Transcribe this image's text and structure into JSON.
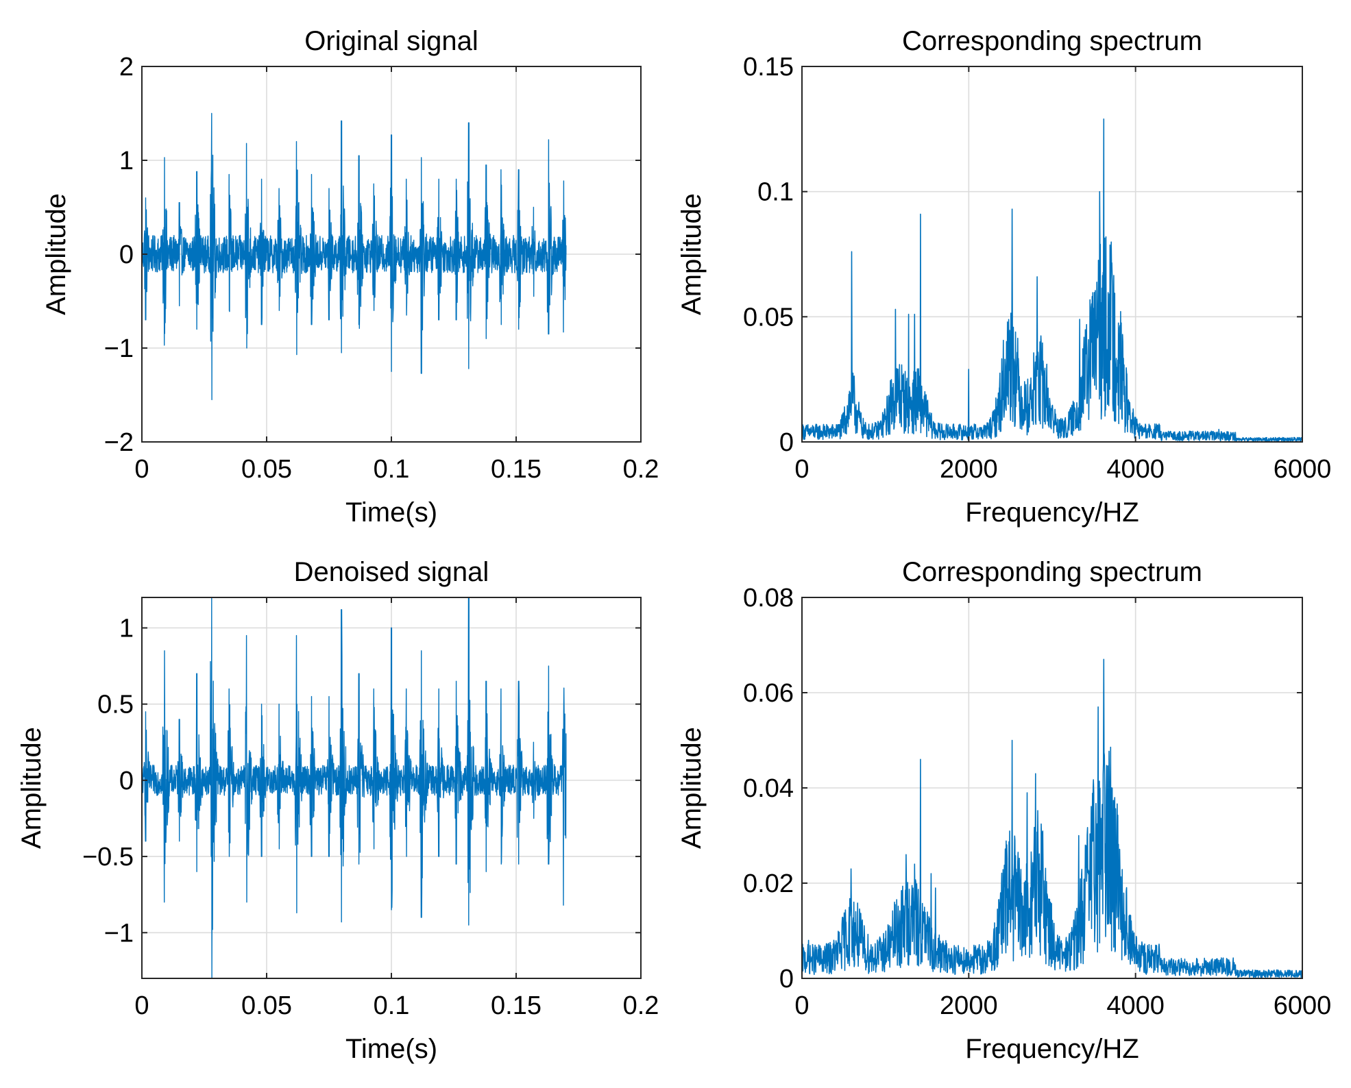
{
  "chart_data": [
    {
      "type": "line",
      "title": "Original signal",
      "xlabel": "Time(s)",
      "ylabel": "Amplitude",
      "xlim": [
        0,
        0.2
      ],
      "ylim": [
        -2,
        2
      ],
      "xticks": [
        0,
        0.05,
        0.1,
        0.15,
        0.2
      ],
      "yticks": [
        -2,
        -1,
        0,
        1,
        2
      ],
      "xtick_labels": [
        "0",
        "0.05",
        "0.1",
        "0.15",
        "0.2"
      ],
      "ytick_labels": [
        "−2",
        "−1",
        "0",
        "1",
        "2"
      ],
      "grid": true,
      "color": "#0072BD",
      "series": [
        {
          "x_range": [
            0,
            0.17
          ],
          "baseline": 0.2,
          "peaks": [
            {
              "x": 0.0015,
              "ymax": 0.6,
              "ymin": -0.7
            },
            {
              "x": 0.009,
              "ymax": 1.03,
              "ymin": -0.97
            },
            {
              "x": 0.015,
              "ymax": 0.55,
              "ymin": -0.55
            },
            {
              "x": 0.022,
              "ymax": 0.88,
              "ymin": -0.8
            },
            {
              "x": 0.028,
              "ymax": 1.5,
              "ymin": -1.55
            },
            {
              "x": 0.035,
              "ymax": 0.85,
              "ymin": -0.6
            },
            {
              "x": 0.042,
              "ymax": 1.18,
              "ymin": -1.0
            },
            {
              "x": 0.048,
              "ymax": 0.8,
              "ymin": -0.75
            },
            {
              "x": 0.055,
              "ymax": 0.7,
              "ymin": -0.6
            },
            {
              "x": 0.062,
              "ymax": 1.2,
              "ymin": -1.07
            },
            {
              "x": 0.068,
              "ymax": 0.85,
              "ymin": -0.75
            },
            {
              "x": 0.075,
              "ymax": 0.7,
              "ymin": -0.7
            },
            {
              "x": 0.08,
              "ymax": 1.42,
              "ymin": -1.05
            },
            {
              "x": 0.087,
              "ymax": 1.05,
              "ymin": -0.75
            },
            {
              "x": 0.093,
              "ymax": 0.75,
              "ymin": -0.6
            },
            {
              "x": 0.1,
              "ymax": 1.27,
              "ymin": -1.25
            },
            {
              "x": 0.106,
              "ymax": 0.8,
              "ymin": -0.65
            },
            {
              "x": 0.112,
              "ymax": 1.03,
              "ymin": -1.27
            },
            {
              "x": 0.119,
              "ymax": 0.8,
              "ymin": -0.7
            },
            {
              "x": 0.126,
              "ymax": 0.8,
              "ymin": -0.7
            },
            {
              "x": 0.131,
              "ymax": 1.4,
              "ymin": -1.22
            },
            {
              "x": 0.138,
              "ymax": 0.95,
              "ymin": -0.9
            },
            {
              "x": 0.144,
              "ymax": 0.9,
              "ymin": -0.75
            },
            {
              "x": 0.151,
              "ymax": 0.9,
              "ymin": -0.8
            },
            {
              "x": 0.157,
              "ymax": 0.5,
              "ymin": -0.45
            },
            {
              "x": 0.163,
              "ymax": 1.22,
              "ymin": -0.85
            },
            {
              "x": 0.169,
              "ymax": 0.78,
              "ymin": -0.83
            }
          ]
        }
      ]
    },
    {
      "type": "line",
      "title": "Corresponding spectrum",
      "xlabel": "Frequency/HZ",
      "ylabel": "Amplitude",
      "xlim": [
        0,
        6000
      ],
      "ylim": [
        0,
        0.15
      ],
      "xticks": [
        0,
        2000,
        4000,
        6000
      ],
      "yticks": [
        0,
        0.05,
        0.1,
        0.15
      ],
      "xtick_labels": [
        "0",
        "2000",
        "4000",
        "6000"
      ],
      "ytick_labels": [
        "0",
        "0.05",
        "0.1",
        "0.15"
      ],
      "grid": true,
      "color": "#0072BD",
      "series": [
        {
          "x_range": [
            0,
            6000
          ],
          "floor": 0.004,
          "bands": [
            {
              "x": 600,
              "height": 0.012,
              "width": 90
            },
            {
              "x": 1150,
              "height": 0.015,
              "width": 140
            },
            {
              "x": 1400,
              "height": 0.012,
              "width": 120
            },
            {
              "x": 2500,
              "height": 0.028,
              "width": 140
            },
            {
              "x": 2850,
              "height": 0.02,
              "width": 140
            },
            {
              "x": 3550,
              "height": 0.035,
              "width": 220
            },
            {
              "x": 3750,
              "height": 0.022,
              "width": 150
            }
          ],
          "peaks": [
            {
              "x": 595,
              "y": 0.076
            },
            {
              "x": 1120,
              "y": 0.053
            },
            {
              "x": 1280,
              "y": 0.051
            },
            {
              "x": 1350,
              "y": 0.051
            },
            {
              "x": 1420,
              "y": 0.091
            },
            {
              "x": 2000,
              "y": 0.029
            },
            {
              "x": 2520,
              "y": 0.093
            },
            {
              "x": 2820,
              "y": 0.066
            },
            {
              "x": 3330,
              "y": 0.049
            },
            {
              "x": 3570,
              "y": 0.1
            },
            {
              "x": 3620,
              "y": 0.129
            },
            {
              "x": 3720,
              "y": 0.066
            },
            {
              "x": 5000,
              "y": 0.005
            }
          ]
        }
      ]
    },
    {
      "type": "line",
      "title": "Denoised signal",
      "xlabel": "Time(s)",
      "ylabel": "Amplitude",
      "xlim": [
        0,
        0.2
      ],
      "ylim": [
        -1.3,
        1.2
      ],
      "xticks": [
        0,
        0.05,
        0.1,
        0.15,
        0.2
      ],
      "yticks": [
        -1,
        -0.5,
        0,
        0.5,
        1
      ],
      "xtick_labels": [
        "0",
        "0.05",
        "0.1",
        "0.15",
        "0.2"
      ],
      "ytick_labels": [
        "−1",
        "−0.5",
        "0",
        "0.5",
        "1"
      ],
      "grid": true,
      "color": "#0072BD",
      "series": [
        {
          "x_range": [
            0,
            0.17
          ],
          "baseline": 0.1,
          "peaks": [
            {
              "x": 0.0015,
              "ymax": 0.45,
              "ymin": -0.4
            },
            {
              "x": 0.009,
              "ymax": 0.85,
              "ymin": -0.8
            },
            {
              "x": 0.015,
              "ymax": 0.4,
              "ymin": -0.4
            },
            {
              "x": 0.022,
              "ymax": 0.7,
              "ymin": -0.6
            },
            {
              "x": 0.028,
              "ymax": 1.2,
              "ymin": -1.3
            },
            {
              "x": 0.035,
              "ymax": 0.6,
              "ymin": -0.5
            },
            {
              "x": 0.042,
              "ymax": 0.95,
              "ymin": -0.8
            },
            {
              "x": 0.048,
              "ymax": 0.5,
              "ymin": -0.5
            },
            {
              "x": 0.055,
              "ymax": 0.5,
              "ymin": -0.45
            },
            {
              "x": 0.062,
              "ymax": 0.95,
              "ymin": -0.87
            },
            {
              "x": 0.068,
              "ymax": 0.55,
              "ymin": -0.5
            },
            {
              "x": 0.075,
              "ymax": 0.55,
              "ymin": -0.5
            },
            {
              "x": 0.08,
              "ymax": 1.12,
              "ymin": -0.93
            },
            {
              "x": 0.087,
              "ymax": 0.7,
              "ymin": -0.55
            },
            {
              "x": 0.093,
              "ymax": 0.6,
              "ymin": -0.45
            },
            {
              "x": 0.1,
              "ymax": 1.0,
              "ymin": -0.85
            },
            {
              "x": 0.106,
              "ymax": 0.6,
              "ymin": -0.5
            },
            {
              "x": 0.112,
              "ymax": 0.85,
              "ymin": -0.9
            },
            {
              "x": 0.119,
              "ymax": 0.6,
              "ymin": -0.5
            },
            {
              "x": 0.126,
              "ymax": 0.65,
              "ymin": -0.55
            },
            {
              "x": 0.131,
              "ymax": 1.2,
              "ymin": -0.95
            },
            {
              "x": 0.138,
              "ymax": 0.65,
              "ymin": -0.6
            },
            {
              "x": 0.144,
              "ymax": 0.6,
              "ymin": -0.55
            },
            {
              "x": 0.151,
              "ymax": 0.65,
              "ymin": -0.55
            },
            {
              "x": 0.157,
              "ymax": 0.25,
              "ymin": -0.25
            },
            {
              "x": 0.163,
              "ymax": 0.75,
              "ymin": -0.55
            },
            {
              "x": 0.169,
              "ymax": 0.45,
              "ymin": -0.82
            }
          ]
        }
      ]
    },
    {
      "type": "line",
      "title": "Corresponding spectrum",
      "xlabel": "Frequency/HZ",
      "ylabel": "Amplitude",
      "xlim": [
        0,
        6000
      ],
      "ylim": [
        0,
        0.08
      ],
      "xticks": [
        0,
        2000,
        4000,
        6000
      ],
      "yticks": [
        0,
        0.02,
        0.04,
        0.06,
        0.08
      ],
      "xtick_labels": [
        "0",
        "2000",
        "4000",
        "6000"
      ],
      "ytick_labels": [
        "0",
        "0.02",
        "0.04",
        "0.06",
        "0.08"
      ],
      "grid": true,
      "color": "#0072BD",
      "series": [
        {
          "x_range": [
            0,
            6000
          ],
          "floor": 0.004,
          "bands": [
            {
              "x": 600,
              "height": 0.006,
              "width": 150
            },
            {
              "x": 1300,
              "height": 0.008,
              "width": 250
            },
            {
              "x": 2500,
              "height": 0.014,
              "width": 150
            },
            {
              "x": 2830,
              "height": 0.016,
              "width": 150
            },
            {
              "x": 3550,
              "height": 0.02,
              "width": 220
            },
            {
              "x": 3750,
              "height": 0.012,
              "width": 160
            }
          ],
          "peaks": [
            {
              "x": 80,
              "y": 0.008
            },
            {
              "x": 590,
              "y": 0.023
            },
            {
              "x": 1110,
              "y": 0.016
            },
            {
              "x": 1250,
              "y": 0.026
            },
            {
              "x": 1350,
              "y": 0.024
            },
            {
              "x": 1420,
              "y": 0.046
            },
            {
              "x": 1550,
              "y": 0.022
            },
            {
              "x": 1600,
              "y": 0.019
            },
            {
              "x": 2520,
              "y": 0.05
            },
            {
              "x": 2700,
              "y": 0.039
            },
            {
              "x": 2800,
              "y": 0.043
            },
            {
              "x": 3320,
              "y": 0.03
            },
            {
              "x": 3550,
              "y": 0.057
            },
            {
              "x": 3620,
              "y": 0.067
            },
            {
              "x": 3720,
              "y": 0.04
            }
          ]
        }
      ]
    }
  ]
}
